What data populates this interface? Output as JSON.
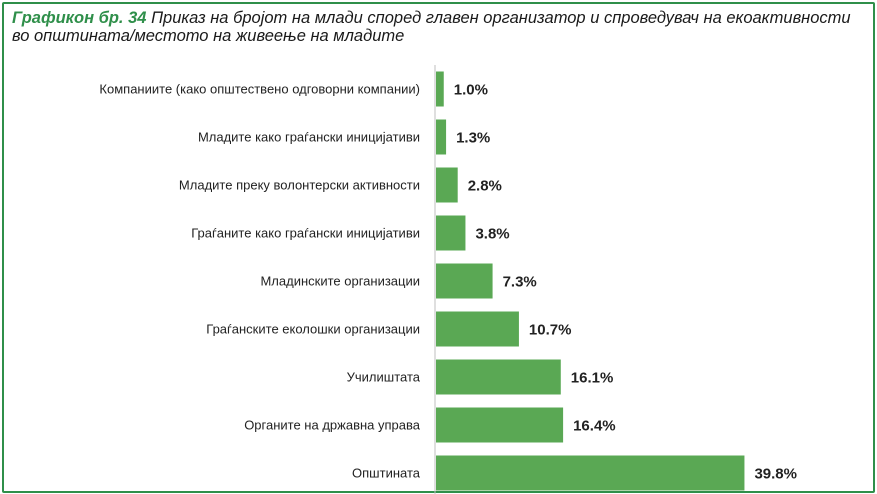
{
  "title": {
    "prefix": "Графикон бр. 34",
    "text": "Приказ на бројот на млади според главен организатор и спроведувач на екоактивности во општината/местото на живеење на младите"
  },
  "colors": {
    "bar": "#5aa854",
    "border": "#2f8f4a",
    "axis": "#bfbfbf"
  },
  "chart_data": {
    "type": "bar",
    "orientation": "horizontal",
    "categories": [
      "Компаниите (како општествено одговорни компании)",
      "Младите како граѓански иницијативи",
      "Младите преку волонтерски активности",
      "Граѓаните како граѓански иницијативи",
      "Младинските организации",
      "Граѓанските еколошки организации",
      "Училиштата",
      "Органите на државна управа",
      "Општината"
    ],
    "values": [
      1.0,
      1.3,
      2.8,
      3.8,
      7.3,
      10.7,
      16.1,
      16.4,
      39.8
    ],
    "value_labels": [
      "1.0%",
      "1.3%",
      "2.8%",
      "3.8%",
      "7.3%",
      "10.7%",
      "16.1%",
      "16.4%",
      "39.8%"
    ],
    "unit": "%",
    "xlim": [
      0,
      40
    ],
    "grid": false,
    "legend": "none"
  }
}
